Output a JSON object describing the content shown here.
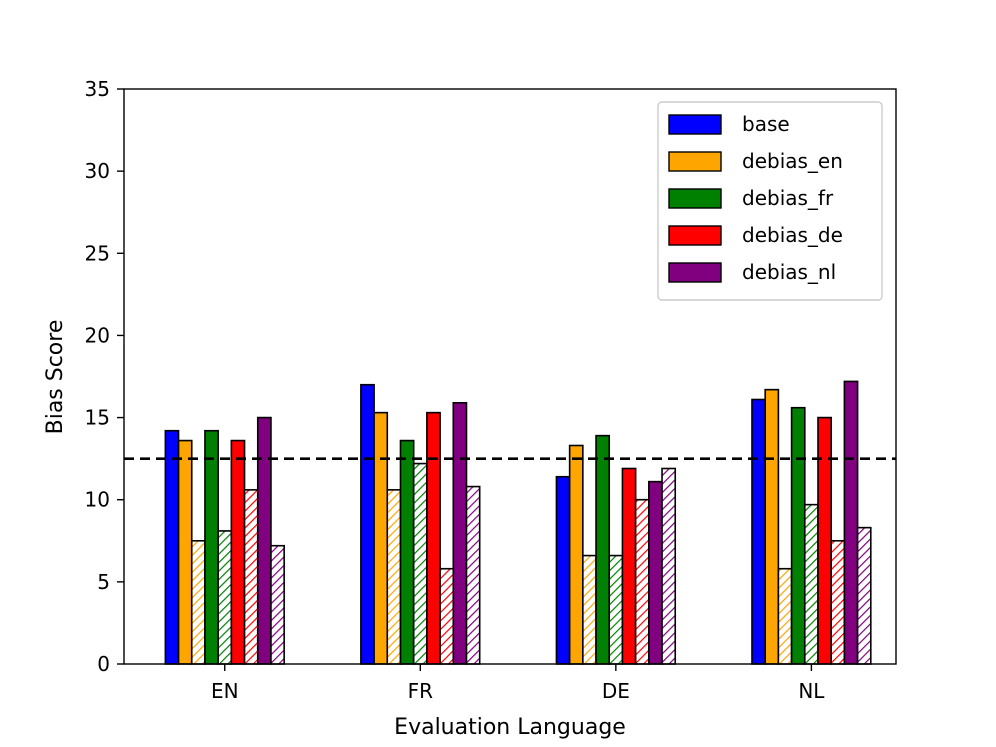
{
  "chart_data": {
    "type": "bar",
    "title": "",
    "xlabel": "Evaluation Language",
    "ylabel": "Bias Score",
    "ylim": [
      0,
      35
    ],
    "yticks": [
      0,
      5,
      10,
      15,
      20,
      25,
      30,
      35
    ],
    "categories": [
      "EN",
      "FR",
      "DE",
      "NL"
    ],
    "reference_line": {
      "y": 12.5,
      "style": "dashed",
      "color": "#000000"
    },
    "legend": {
      "placement": "top-right"
    },
    "series": [
      {
        "name": "base",
        "color": "#0000ff",
        "solid": [
          14.2,
          17.0,
          11.4,
          16.1
        ],
        "hatched": []
      },
      {
        "name": "debias_en",
        "color": "#ffa500",
        "solid": [
          13.6,
          15.3,
          13.3,
          16.7
        ],
        "hatched": [
          7.5,
          10.6,
          6.6,
          5.8
        ]
      },
      {
        "name": "debias_fr",
        "color": "#008000",
        "solid": [
          14.2,
          13.6,
          13.9,
          15.6
        ],
        "hatched": [
          8.1,
          12.2,
          6.6,
          9.7
        ]
      },
      {
        "name": "debias_de",
        "color": "#ff0000",
        "solid": [
          13.6,
          15.3,
          11.9,
          15.0
        ],
        "hatched": [
          10.6,
          5.8,
          10.0,
          7.5
        ]
      },
      {
        "name": "debias_nl",
        "color": "#800080",
        "solid": [
          15.0,
          15.9,
          11.1,
          17.2
        ],
        "hatched": [
          7.2,
          10.8,
          11.9,
          8.3
        ]
      }
    ]
  }
}
